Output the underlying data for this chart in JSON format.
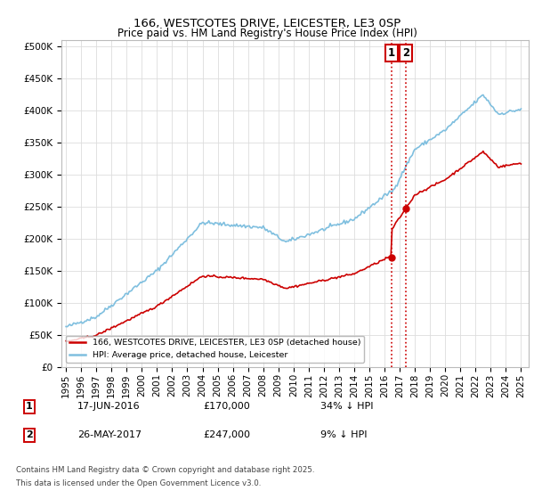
{
  "title": "166, WESTCOTES DRIVE, LEICESTER, LE3 0SP",
  "subtitle": "Price paid vs. HM Land Registry's House Price Index (HPI)",
  "background_color": "#ffffff",
  "plot_bg_color": "#ffffff",
  "grid_color": "#dddddd",
  "ylim": [
    0,
    510000
  ],
  "yticks": [
    0,
    50000,
    100000,
    150000,
    200000,
    250000,
    300000,
    350000,
    400000,
    450000,
    500000
  ],
  "ytick_labels": [
    "£0",
    "£50K",
    "£100K",
    "£150K",
    "£200K",
    "£250K",
    "£300K",
    "£350K",
    "£400K",
    "£450K",
    "£500K"
  ],
  "xlabel_years": [
    1995,
    1996,
    1997,
    1998,
    1999,
    2000,
    2001,
    2002,
    2003,
    2004,
    2005,
    2006,
    2007,
    2008,
    2009,
    2010,
    2011,
    2012,
    2013,
    2014,
    2015,
    2016,
    2017,
    2018,
    2019,
    2020,
    2021,
    2022,
    2023,
    2024,
    2025
  ],
  "hpi_color": "#7fbfdf",
  "price_color": "#cc0000",
  "vline_color": "#cc0000",
  "marker1_year": 2016.46,
  "marker2_year": 2017.4,
  "marker1_price": 170000,
  "marker2_price": 247000,
  "legend_label1": "166, WESTCOTES DRIVE, LEICESTER, LE3 0SP (detached house)",
  "legend_label2": "HPI: Average price, detached house, Leicester",
  "footer_line1": "Contains HM Land Registry data © Crown copyright and database right 2025.",
  "footer_line2": "This data is licensed under the Open Government Licence v3.0.",
  "table_row1": [
    "1",
    "17-JUN-2016",
    "£170,000",
    "34% ↓ HPI"
  ],
  "table_row2": [
    "2",
    "26-MAY-2017",
    "£247,000",
    "9% ↓ HPI"
  ]
}
